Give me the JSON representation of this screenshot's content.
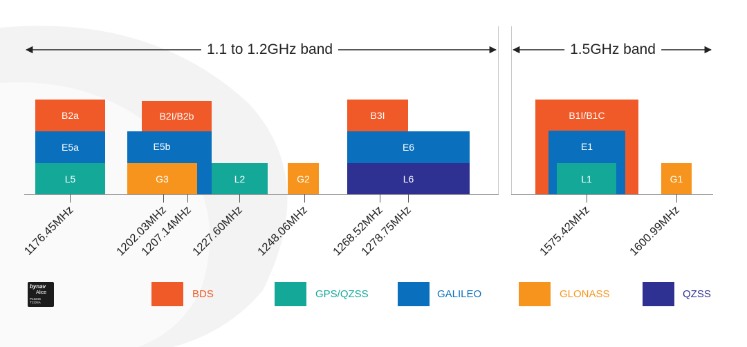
{
  "bands": {
    "low": "1.1 to 1.2GHz band",
    "high": "1.5GHz band"
  },
  "blocks": {
    "b2a": "B2a",
    "e5a": "E5a",
    "l5": "L5",
    "b2i_b2b": "B2I/B2b",
    "e5b": "E5b",
    "g3": "G3",
    "l2": "L2",
    "g2": "G2",
    "b3i": "B3I",
    "e6": "E6",
    "l6": "L6",
    "b1i_b1c": "B1I/B1C",
    "e1": "E1",
    "l1": "L1",
    "g1": "G1"
  },
  "frequencies": {
    "f1176": "1176.45MHz",
    "f1202": "1202.03MHz",
    "f1207": "1207.14MHz",
    "f1227": "1227.60MHz",
    "f1248": "1248.06MHz",
    "f1268": "1268.52MHz",
    "f1278": "1278.75MHz",
    "f1575": "1575.42MHz",
    "f1600": "1600.99MHz"
  },
  "legend": [
    {
      "label": "BDS",
      "color": "#f05a28"
    },
    {
      "label": "GPS/QZSS",
      "color": "#13a898"
    },
    {
      "label": "GALILEO",
      "color": "#0a6fbd"
    },
    {
      "label": "GLONASS",
      "color": "#f7941d"
    },
    {
      "label": "QZSS",
      "color": "#2e3192"
    }
  ],
  "logo": {
    "brand": "bynav",
    "product": "Alice",
    "models": "P1224S\nT1224A"
  },
  "colors": {
    "bds": "#f05a28",
    "gps": "#13a898",
    "galileo": "#0a6fbd",
    "glonass": "#f7941d",
    "qzss": "#2e3192"
  }
}
